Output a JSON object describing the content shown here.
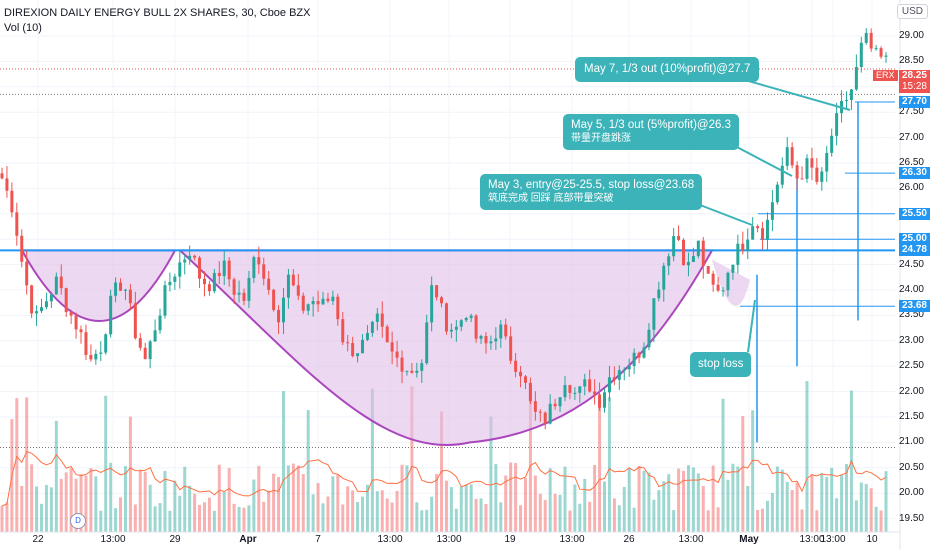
{
  "legend": {
    "title": "DIREXION DAILY ENERGY BULL 2X SHARES, 30, Cboe BZX",
    "volume": "Vol (10)"
  },
  "currency": "USD",
  "ticker": "ERX",
  "last_price": "28.25",
  "countdown": "15:28",
  "dividend_marker": "D",
  "price_tags": [
    "27.70",
    "26.30",
    "25.50",
    "25.00",
    "24.78",
    "23.68"
  ],
  "annotations": {
    "may3": {
      "line1": "May 3, entry@25-25.5, stop loss@23.68",
      "line2": "筑底完成 回踩 底部带量突破"
    },
    "may5": {
      "line1": "May 5, 1/3 out (5%profit)@26.3",
      "line2": "带量开盘跳涨"
    },
    "may7": {
      "line1": "May 7, 1/3 out (10%profit)@27.7"
    },
    "stop": {
      "line1": "stop loss"
    }
  },
  "colors": {
    "up": "#26a69a",
    "down": "#ef5350",
    "neckline": "#2196f3",
    "cup_fill": "#e1bee7",
    "cup_line": "#ab47bc",
    "callout": "#3bb3b8"
  },
  "chart_data": {
    "type": "candlestick",
    "title": "DIREXION DAILY ENERGY BULL 2X SHARES, 30, Cboe BZX",
    "y_axis": {
      "ticks": [
        29.0,
        28.5,
        28.0,
        27.5,
        27.0,
        26.5,
        26.0,
        25.5,
        25.0,
        24.5,
        24.0,
        23.5,
        23.0,
        22.5,
        22.0,
        21.5,
        21.0,
        20.5,
        20.0,
        19.5
      ],
      "range": [
        19.3,
        29.9
      ]
    },
    "x_axis": {
      "ticks": [
        "22",
        "13:00",
        "29",
        "Apr",
        "7",
        "13:00",
        "13:00",
        "19",
        "13:00",
        "26",
        "13:00",
        "May",
        "13:00",
        "13:00",
        "10"
      ]
    },
    "horizontal_levels": [
      27.7,
      26.3,
      25.5,
      25.0,
      24.78,
      23.68
    ],
    "neckline": 24.78,
    "close_path": [
      26.2,
      25.6,
      24.3,
      23.4,
      23.8,
      24.2,
      23.6,
      23.2,
      22.6,
      22.9,
      23.9,
      24.2,
      23.2,
      22.6,
      23.4,
      24.1,
      24.5,
      24.8,
      24.2,
      24.1,
      24.5,
      24.0,
      23.8,
      24.8,
      24.1,
      23.5,
      24.3,
      23.6,
      23.8,
      23.7,
      23.9,
      22.9,
      22.8,
      23.0,
      23.4,
      22.8,
      22.6,
      22.4,
      22.6,
      24.2,
      23.4,
      23.2,
      23.6,
      23.0,
      22.9,
      23.3,
      22.7,
      22.4,
      21.6,
      21.4,
      21.8,
      22.3,
      21.9,
      22.2,
      21.8,
      22.3,
      22.5,
      22.6,
      22.9,
      23.8,
      24.6,
      25.2,
      24.4,
      24.9,
      24.1,
      23.9,
      24.6,
      24.9,
      25.4,
      25.1,
      26.0,
      26.7,
      26.2,
      26.5,
      26.0,
      27.0,
      27.6,
      28.0,
      29.0,
      28.6,
      28.5
    ],
    "volume_range": [
      0,
      100
    ]
  }
}
